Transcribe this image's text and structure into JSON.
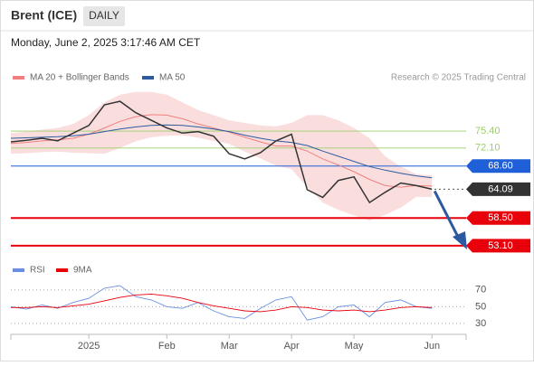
{
  "header": {
    "title": "Brent (ICE)",
    "interval": "DAILY",
    "timestamp": "Monday, June 2, 2025 3:17:46 AM CET",
    "credit": "Research © 2025 Trading Central"
  },
  "chart_data": [
    {
      "type": "line",
      "categories": [
        null,
        null,
        null,
        null,
        null,
        "2025",
        null,
        null,
        null,
        null,
        "Feb",
        null,
        null,
        null,
        "Mar",
        null,
        null,
        null,
        "Apr",
        null,
        null,
        null,
        "May",
        null,
        null,
        null,
        null,
        "Jun"
      ],
      "ylim": [
        50.8,
        84.2
      ],
      "series": [
        {
          "name": "MA 20 + Bollinger Bands",
          "color": "#f08080",
          "band_color": "#f9d6d6",
          "values": [
            73.0,
            73.2,
            73.5,
            73.7,
            74.0,
            74.8,
            76.0,
            77.3,
            78.2,
            78.6,
            78.5,
            77.8,
            76.8,
            76.0,
            75.2,
            74.2,
            73.3,
            72.5,
            72.5,
            71.5,
            70.0,
            68.8,
            67.5,
            66.0,
            64.8,
            64.5,
            64.8,
            64.7
          ],
          "upper": [
            75.0,
            75.3,
            75.7,
            76.0,
            76.8,
            78.5,
            81.0,
            82.5,
            83.0,
            83.0,
            82.5,
            81.0,
            79.5,
            78.5,
            77.5,
            77.0,
            76.5,
            76.3,
            77.0,
            78.5,
            78.5,
            77.5,
            76.0,
            74.0,
            70.5,
            68.5,
            67.0,
            66.8
          ],
          "lower": [
            71.0,
            71.1,
            71.3,
            71.4,
            71.2,
            71.1,
            71.0,
            72.1,
            73.4,
            74.2,
            74.5,
            74.6,
            74.1,
            73.5,
            72.9,
            71.4,
            70.1,
            68.7,
            68.0,
            64.5,
            61.5,
            60.1,
            59.0,
            58.0,
            59.1,
            60.5,
            62.6,
            62.6
          ]
        },
        {
          "name": "MA 50",
          "color": "#2c5aa0",
          "values": [
            74.0,
            74.1,
            74.2,
            74.3,
            74.5,
            74.8,
            75.3,
            75.8,
            76.2,
            76.5,
            76.6,
            76.5,
            76.2,
            75.8,
            75.3,
            74.6,
            74.0,
            73.5,
            73.2,
            72.6,
            71.5,
            70.5,
            69.5,
            68.5,
            67.8,
            67.2,
            66.7,
            66.3
          ]
        },
        {
          "color": "#333333",
          "values": [
            73.3,
            73.6,
            74.0,
            73.5,
            75.0,
            76.5,
            80.5,
            81.2,
            79.0,
            77.5,
            76.0,
            75.0,
            75.3,
            74.4,
            71.0,
            70.0,
            71.2,
            73.5,
            74.8,
            64.0,
            62.5,
            65.8,
            66.5,
            61.5,
            63.5,
            65.3,
            64.8,
            64.09
          ]
        }
      ],
      "levels": [
        {
          "value": 75.4,
          "label": "75.40",
          "color": "#9acd6a",
          "style": "text"
        },
        {
          "value": 72.1,
          "label": "72.10",
          "color": "#9acd6a",
          "style": "text"
        },
        {
          "value": 68.6,
          "label": "68.60",
          "color": "#1f5fd8",
          "style": "tag"
        },
        {
          "value": 64.09,
          "color": "#333333",
          "style": "dotted-tag"
        },
        {
          "value": 58.5,
          "label": "58.50",
          "color": "#e8000b",
          "style": "tag"
        },
        {
          "value": 53.1,
          "label": "53.10",
          "color": "#e8000b",
          "style": "tag"
        }
      ]
    },
    {
      "type": "line",
      "ylim": [
        17,
        87
      ],
      "yticks": [
        70,
        50,
        30
      ],
      "series": [
        {
          "name": "RSI",
          "color": "#6a8fe0",
          "values": [
            50,
            47,
            52,
            48,
            55,
            60,
            72,
            75,
            62,
            58,
            50,
            48,
            55,
            45,
            38,
            36,
            48,
            58,
            62,
            34,
            38,
            50,
            52,
            38,
            55,
            58,
            50,
            48
          ]
        },
        {
          "name": "9MA",
          "color": "#e8000b",
          "values": [
            49,
            49,
            50,
            49,
            51,
            53,
            57,
            61,
            64,
            65,
            63,
            60,
            55,
            51,
            48,
            45,
            44,
            46,
            50,
            49,
            46,
            45,
            46,
            44,
            46,
            49,
            50,
            49
          ]
        }
      ]
    }
  ]
}
